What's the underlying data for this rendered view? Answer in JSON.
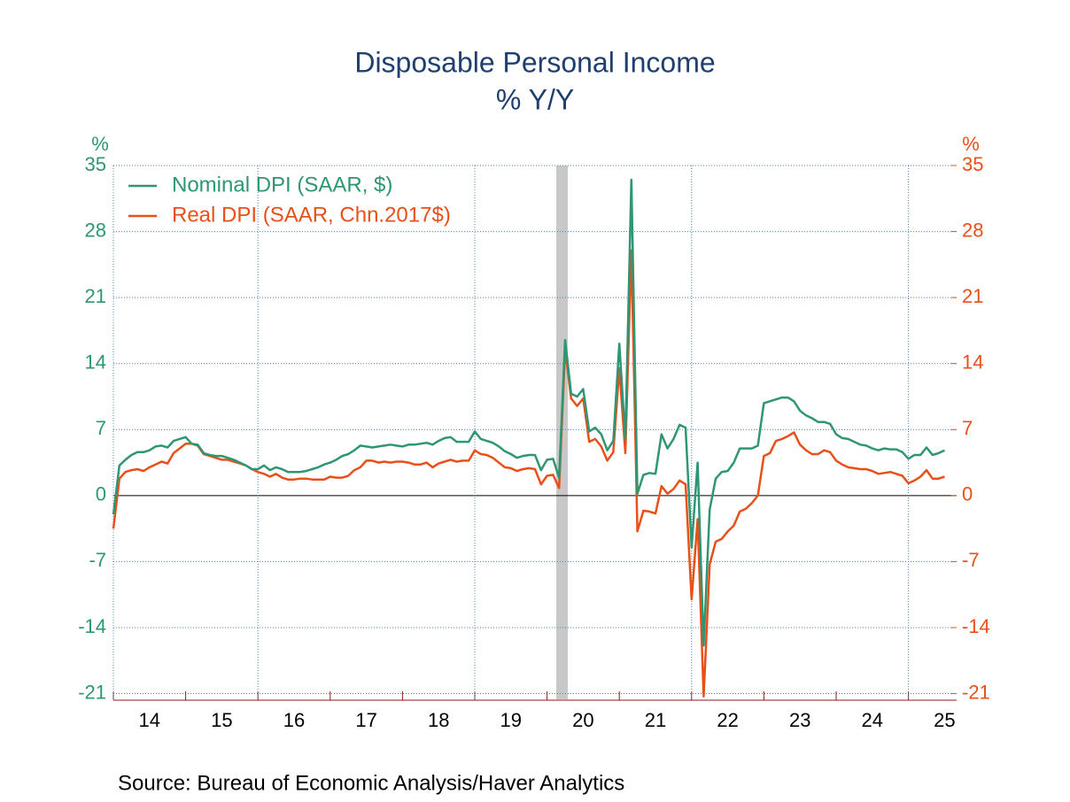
{
  "chart_data": {
    "type": "line",
    "title": "Disposable Personal Income",
    "subtitle": "% Y/Y",
    "y_unit_label": "%",
    "y2_unit_label": "%",
    "source": "Source:  Bureau of Economic Analysis/Haver Analytics",
    "categories": [
      null,
      null,
      null,
      null,
      null,
      null,
      "14",
      null,
      null,
      null,
      null,
      null,
      null,
      null,
      null,
      null,
      null,
      null,
      "15",
      null,
      null,
      null,
      null,
      null,
      null,
      null,
      null,
      null,
      null,
      null,
      "16",
      null,
      null,
      null,
      null,
      null,
      null,
      null,
      null,
      null,
      null,
      null,
      "17",
      null,
      null,
      null,
      null,
      null,
      null,
      null,
      null,
      null,
      null,
      null,
      "18",
      null,
      null,
      null,
      null,
      null,
      null,
      null,
      null,
      null,
      null,
      null,
      "19",
      null,
      null,
      null,
      null,
      null,
      null,
      null,
      null,
      null,
      null,
      null,
      "20",
      null,
      null,
      null,
      null,
      null,
      null,
      null,
      null,
      null,
      null,
      null,
      "21",
      null,
      null,
      null,
      null,
      null,
      null,
      null,
      null,
      null,
      null,
      null,
      "22",
      null,
      null,
      null,
      null,
      null,
      null,
      null,
      null,
      null,
      null,
      null,
      "23",
      null,
      null,
      null,
      null,
      null,
      null,
      null,
      null,
      null,
      null,
      null,
      "24",
      null,
      null,
      null,
      null,
      null,
      null,
      null,
      null,
      null,
      null,
      null,
      "25"
    ],
    "series": [
      {
        "name": "Nominal DPI (SAAR, $)",
        "color": "#2e9672",
        "values": [
          -2,
          3.2,
          3.8,
          4.3,
          4.6,
          4.6,
          4.8,
          5.2,
          5.3,
          5.1,
          5.8,
          6.0,
          6.2,
          5.5,
          5.4,
          4.5,
          4.3,
          4.2,
          4.2,
          4.0,
          3.8,
          3.5,
          3.2,
          2.8,
          2.8,
          3.2,
          2.7,
          3.0,
          2.8,
          2.5,
          2.5,
          2.5,
          2.6,
          2.8,
          3.0,
          3.3,
          3.5,
          3.8,
          4.2,
          4.4,
          4.8,
          5.3,
          5.2,
          5.1,
          5.2,
          5.3,
          5.4,
          5.3,
          5.2,
          5.4,
          5.4,
          5.5,
          5.6,
          5.4,
          5.8,
          6.1,
          6.2,
          5.7,
          5.7,
          5.7,
          6.8,
          6.0,
          5.8,
          5.6,
          5.2,
          4.7,
          4.4,
          4.0,
          4.2,
          4.3,
          4.3,
          2.7,
          3.8,
          3.9,
          1.9,
          16.5,
          10.8,
          10.5,
          11.3,
          6.8,
          7.2,
          6.5,
          4.8,
          5.8,
          16.1,
          6.0,
          33.5,
          0.2,
          2.2,
          2.4,
          2.3,
          6.5,
          5.0,
          6.0,
          7.5,
          7.2,
          -5.5,
          3.5,
          -15.9,
          -1.5,
          1.8,
          2.5,
          2.6,
          3.5,
          5.0,
          5.0,
          5.0,
          5.3,
          9.8,
          10.0,
          10.2,
          10.4,
          10.4,
          10.0,
          9.0,
          8.5,
          8.2,
          7.8,
          7.8,
          7.6,
          6.5,
          6.1,
          6.0,
          5.7,
          5.4,
          5.3,
          5.0,
          4.8,
          5.0,
          4.9,
          4.9,
          4.6,
          3.9,
          4.3,
          4.3,
          5.1,
          4.3,
          4.5,
          4.8
        ]
      },
      {
        "name": "Real DPI (SAAR, Chn.2017$)",
        "color": "#e8501a",
        "axis": "y2",
        "values": [
          -3.5,
          1.8,
          2.5,
          2.7,
          2.8,
          2.6,
          3.0,
          3.3,
          3.6,
          3.4,
          4.5,
          5.0,
          5.5,
          5.5,
          5.3,
          4.4,
          4.2,
          4.0,
          3.8,
          3.8,
          3.6,
          3.4,
          3.2,
          2.8,
          2.5,
          2.3,
          2.0,
          2.3,
          1.9,
          1.7,
          1.7,
          1.8,
          1.8,
          1.7,
          1.7,
          1.7,
          2.0,
          1.9,
          1.9,
          2.1,
          2.7,
          3.0,
          3.7,
          3.7,
          3.5,
          3.6,
          3.5,
          3.6,
          3.6,
          3.5,
          3.3,
          3.3,
          3.5,
          3.0,
          3.4,
          3.6,
          3.8,
          3.6,
          3.7,
          3.7,
          4.8,
          4.4,
          4.3,
          4.0,
          3.5,
          3.0,
          2.9,
          2.6,
          2.8,
          2.9,
          2.8,
          1.2,
          2.1,
          2.2,
          0.8,
          15.5,
          10.3,
          9.5,
          10.3,
          5.7,
          6.0,
          5.2,
          3.7,
          4.6,
          13.5,
          4.5,
          26.0,
          -3.8,
          -1.6,
          -1.7,
          -1.9,
          1.0,
          0.2,
          0.7,
          1.6,
          1.2,
          -11.0,
          -2.5,
          -21.3,
          -7.3,
          -4.9,
          -4.6,
          -3.8,
          -3.2,
          -1.7,
          -1.4,
          -0.8,
          0.0,
          4.2,
          4.5,
          5.8,
          6.0,
          6.3,
          6.7,
          5.4,
          4.8,
          4.4,
          4.4,
          4.8,
          4.6,
          3.7,
          3.3,
          3.0,
          2.9,
          2.8,
          2.8,
          2.6,
          2.3,
          2.4,
          2.5,
          2.3,
          2.1,
          1.3,
          1.6,
          2.0,
          2.7,
          1.8,
          1.8,
          2.0
        ]
      }
    ],
    "ylim": [
      -21.7,
      35
    ],
    "yticks": [
      -21,
      -14,
      -7,
      0,
      7,
      14,
      21,
      28,
      35
    ],
    "y2lim": [
      -21.7,
      35
    ],
    "y2ticks": [
      -21,
      -14,
      -7,
      0,
      7,
      14,
      21,
      28,
      35
    ],
    "grid": true,
    "legend": "top-left"
  }
}
